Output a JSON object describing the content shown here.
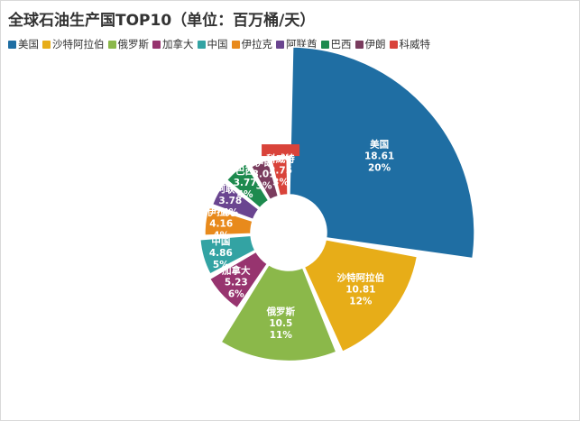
{
  "chart_data": {
    "type": "pie",
    "title": "全球石油生产国TOP10（单位：百万桶/天）",
    "categories": [
      "美国",
      "沙特阿拉伯",
      "俄罗斯",
      "加拿大",
      "中国",
      "伊拉克",
      "阿联酋",
      "巴西",
      "伊朗",
      "科威特"
    ],
    "values": [
      18.61,
      10.81,
      10.5,
      5.23,
      4.86,
      4.16,
      3.78,
      3.77,
      3.01,
      2.75
    ],
    "percent_labels": [
      "20%",
      "12%",
      "11%",
      "6%",
      "5%",
      "4%",
      "4%",
      "4%",
      "3%",
      "3%"
    ],
    "colors": [
      "#1f6ea3",
      "#e7ad18",
      "#8bb84a",
      "#97346f",
      "#33a3a3",
      "#e88a1c",
      "#6a4590",
      "#1d8a4e",
      "#7a3c5e",
      "#d9433a"
    ],
    "legend_position": "top-left",
    "style": "rose-doughnut"
  }
}
